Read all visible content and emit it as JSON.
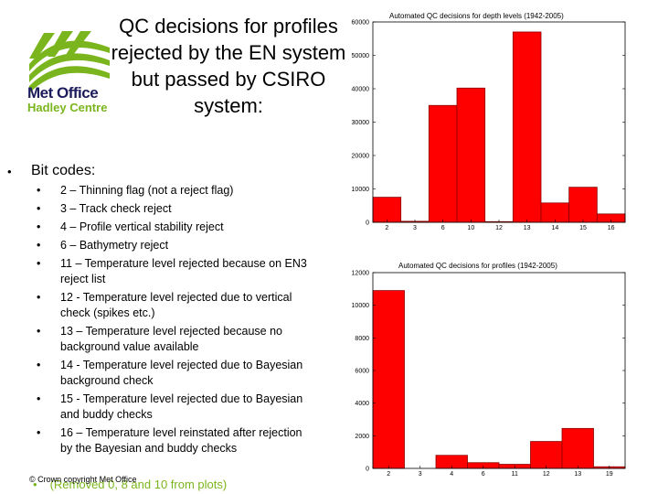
{
  "title": "QC decisions for profiles rejected by the EN system but passed by CSIRO system:",
  "logo": {
    "line1": "Met Office",
    "line2": "Hadley Centre"
  },
  "bit_heading": "Bit codes:",
  "bit_codes": [
    "2 – Thinning flag (not a reject flag)",
    "3 – Track check reject",
    "4 – Profile vertical stability reject",
    "6 – Bathymetry reject",
    "11 – Temperature level rejected because on EN3 reject list",
    "12 - Temperature level rejected due to vertical check (spikes etc.)",
    "13 – Temperature level rejected because no background value available",
    "14 - Temperature level rejected due to Bayesian background check",
    "15 - Temperature level rejected due to Bayesian and buddy checks",
    "16 – Temperature level reinstated after rejection by the Bayesian and buddy checks"
  ],
  "note": "(Removed 0, 8 and 10 from plots)",
  "copyright": "© Crown copyright   Met Office",
  "colors": {
    "bar": "#ff0000",
    "bar_stroke": "#8b0000",
    "logo_green": "#7ab51d",
    "logo_navy": "#1c1c5c"
  },
  "chart_data": [
    {
      "type": "bar",
      "title": "Automated QC decisions for depth levels (1942-2005)",
      "categories": [
        "2",
        "3",
        "6",
        "10",
        "12",
        "13",
        "14",
        "15",
        "16"
      ],
      "bars": [
        {
          "x": 1.5,
          "value": 7500
        },
        {
          "x": 2.5,
          "value": 300
        },
        {
          "x": 3.5,
          "value": 35000
        },
        {
          "x": 4.5,
          "value": 40200
        },
        {
          "x": 5.5,
          "value": 200
        },
        {
          "x": 6.5,
          "value": 57000
        },
        {
          "x": 7.5,
          "value": 5800
        },
        {
          "x": 8.5,
          "value": 10500
        },
        {
          "x": 9.5,
          "value": 2500
        }
      ],
      "xlim": [
        1,
        10
      ],
      "ylim": [
        0,
        60000
      ],
      "yticks": [
        0,
        10000,
        20000,
        30000,
        40000,
        50000,
        60000
      ],
      "xtick_labels": [
        {
          "x": 1.5,
          "label": "2"
        },
        {
          "x": 2.5,
          "label": "3"
        },
        {
          "x": 3.5,
          "label": "6"
        },
        {
          "x": 4.5,
          "label": "10"
        },
        {
          "x": 5.5,
          "label": "12"
        },
        {
          "x": 6.5,
          "label": "13"
        },
        {
          "x": 7.5,
          "label": "14"
        },
        {
          "x": 8.5,
          "label": "15"
        },
        {
          "x": 9.5,
          "label": "16"
        }
      ]
    },
    {
      "type": "bar",
      "title": "Automated QC decisions for profiles (1942-2005)",
      "categories": [
        "2",
        "3",
        "4",
        "6",
        "11",
        "12",
        "13",
        "19"
      ],
      "bars": [
        {
          "x": 1.5,
          "value": 10900
        },
        {
          "x": 2.5,
          "value": 0
        },
        {
          "x": 3.5,
          "value": 800
        },
        {
          "x": 4.5,
          "value": 350
        },
        {
          "x": 5.5,
          "value": 250
        },
        {
          "x": 6.5,
          "value": 1650
        },
        {
          "x": 7.5,
          "value": 2450
        },
        {
          "x": 8.5,
          "value": 100
        }
      ],
      "xlim": [
        1,
        9
      ],
      "ylim": [
        0,
        12000
      ],
      "yticks": [
        0,
        2000,
        4000,
        6000,
        8000,
        10000,
        12000
      ],
      "xtick_labels": [
        {
          "x": 1.5,
          "label": "2"
        },
        {
          "x": 2.5,
          "label": "3"
        },
        {
          "x": 3.5,
          "label": "4"
        },
        {
          "x": 4.5,
          "label": "6"
        },
        {
          "x": 5.5,
          "label": "11"
        },
        {
          "x": 6.5,
          "label": "12"
        },
        {
          "x": 7.5,
          "label": "13"
        },
        {
          "x": 8.5,
          "label": "19"
        }
      ]
    }
  ]
}
